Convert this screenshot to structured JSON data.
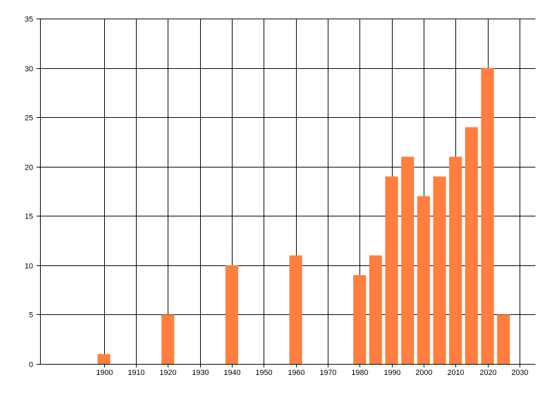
{
  "chart_data": {
    "type": "bar",
    "x": [
      1900,
      1920,
      1940,
      1960,
      1980,
      1985,
      1990,
      1995,
      2000,
      2005,
      2010,
      2015,
      2020,
      2025
    ],
    "values": [
      1,
      5,
      10,
      11,
      9,
      11,
      19,
      21,
      17,
      19,
      21,
      24,
      30,
      5
    ],
    "xticks": [
      1900,
      1910,
      1920,
      1930,
      1940,
      1950,
      1960,
      1970,
      1980,
      1990,
      2000,
      2010,
      2020,
      2030
    ],
    "yticks": [
      0,
      5,
      10,
      15,
      20,
      25,
      30,
      35
    ],
    "xlim": [
      1880,
      2035
    ],
    "ylim": [
      0,
      35
    ],
    "bar_width": 4,
    "grid": true,
    "title": "",
    "xlabel": "",
    "ylabel": "",
    "colors": {
      "bar": "#ff7f3f",
      "grid": "#000000",
      "axis": "#000000"
    }
  }
}
